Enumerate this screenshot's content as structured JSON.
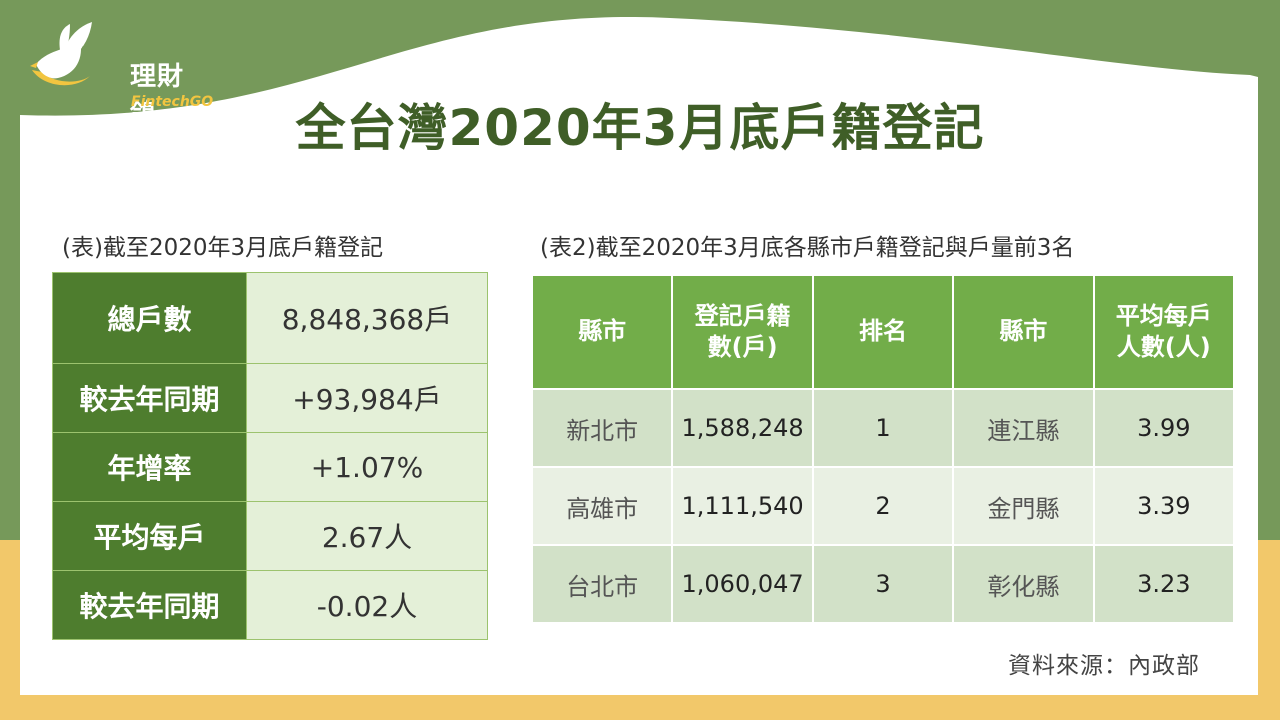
{
  "brand": {
    "name_cn": "理財鴿",
    "name_en": "FintechGO"
  },
  "title": "全台灣2020年3月底戶籍登記",
  "table1": {
    "caption": "(表)截至2020年3月底戶籍登記",
    "rows": [
      {
        "label": "總戶數",
        "value": "8,848,368戶"
      },
      {
        "label": "較去年同期",
        "value": "+93,984戶"
      },
      {
        "label": "年增率",
        "value": "+1.07%"
      },
      {
        "label": "平均每戶",
        "value": "2.67人"
      },
      {
        "label": "較去年同期",
        "value": "-0.02人"
      }
    ]
  },
  "table2": {
    "caption": "(表2)截至2020年3月底各縣市戶籍登記與戶量前3名",
    "headers": [
      "縣市",
      "登記戶籍\n數(戶)",
      "排名",
      "縣市",
      "平均每戶\n人數(人)"
    ],
    "rows": [
      [
        "新北市",
        "1,588,248",
        "1",
        "連江縣",
        "3.99"
      ],
      [
        "高雄市",
        "1,111,540",
        "2",
        "金門縣",
        "3.39"
      ],
      [
        "台北市",
        "1,060,047",
        "3",
        "彰化縣",
        "3.23"
      ]
    ]
  },
  "source": "資料來源：內政部",
  "colors": {
    "dark_green": "#4e7d2e",
    "header_green": "#72ad49",
    "background_green": "#76995a",
    "yellow": "#f2c86a",
    "title_green": "#3f5e27"
  }
}
